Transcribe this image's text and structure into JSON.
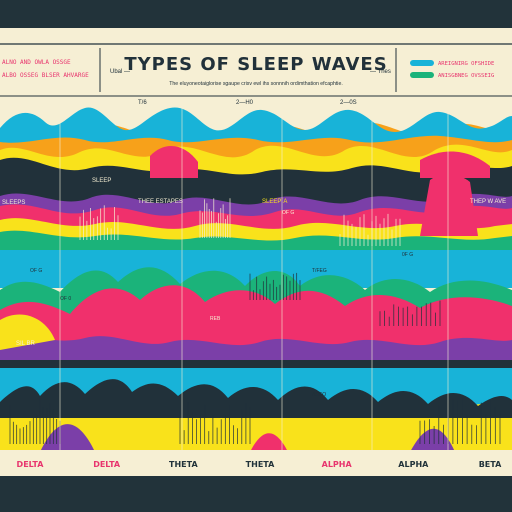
{
  "chart_data": {
    "type": "area",
    "title": "TYPES OF SLEEP WAVES",
    "subtitle": "The eluyoneotaiglorise sgaupe crisv ewl ihs sonnnih ordimthation efcaphtie.",
    "header_left": [
      "ALNO AND OWLA OSSGE",
      "ALBO OSSEG BLSER AHVARGE"
    ],
    "header_mid_left": "Ubal —",
    "header_mid_right": "— Thes",
    "legend": [
      {
        "label": "AREIGNIRG OFSHIDE",
        "color": "#18b3d8"
      },
      {
        "label": "ANISGBNEG OVSSEIG",
        "color": "#e8356e"
      }
    ],
    "top_axis_labels": [
      "T/6",
      "2—H0",
      "2—0S"
    ],
    "band_labels": [
      "SLEEP",
      "SLEEPS",
      "THEE ESTAPES",
      "SLEEP´A",
      "THEP W AVE",
      "OF G",
      "OF G",
      "T/FEG",
      "0F G",
      "OF 0",
      "SIL BR",
      "ARSO",
      "REB"
    ],
    "categories": [
      "DELTA",
      "DELTA",
      "THETA",
      "THETA",
      "ALPHA",
      "ALPHA",
      "BETA"
    ],
    "category_colors": [
      "#e8356e",
      "#e8356e",
      "#22333a",
      "#22333a",
      "#e8356e",
      "#22333a",
      "#22333a"
    ],
    "colors": {
      "background": "#22333a",
      "paper": "#f6efd4",
      "band_bg": "#22333a",
      "blue": "#18b3d8",
      "pink": "#f0306c",
      "orange": "#f7a11a",
      "yellow": "#f9e21b",
      "purple": "#7b3fa8",
      "green": "#1bb37a",
      "dark": "#21313a"
    }
  }
}
